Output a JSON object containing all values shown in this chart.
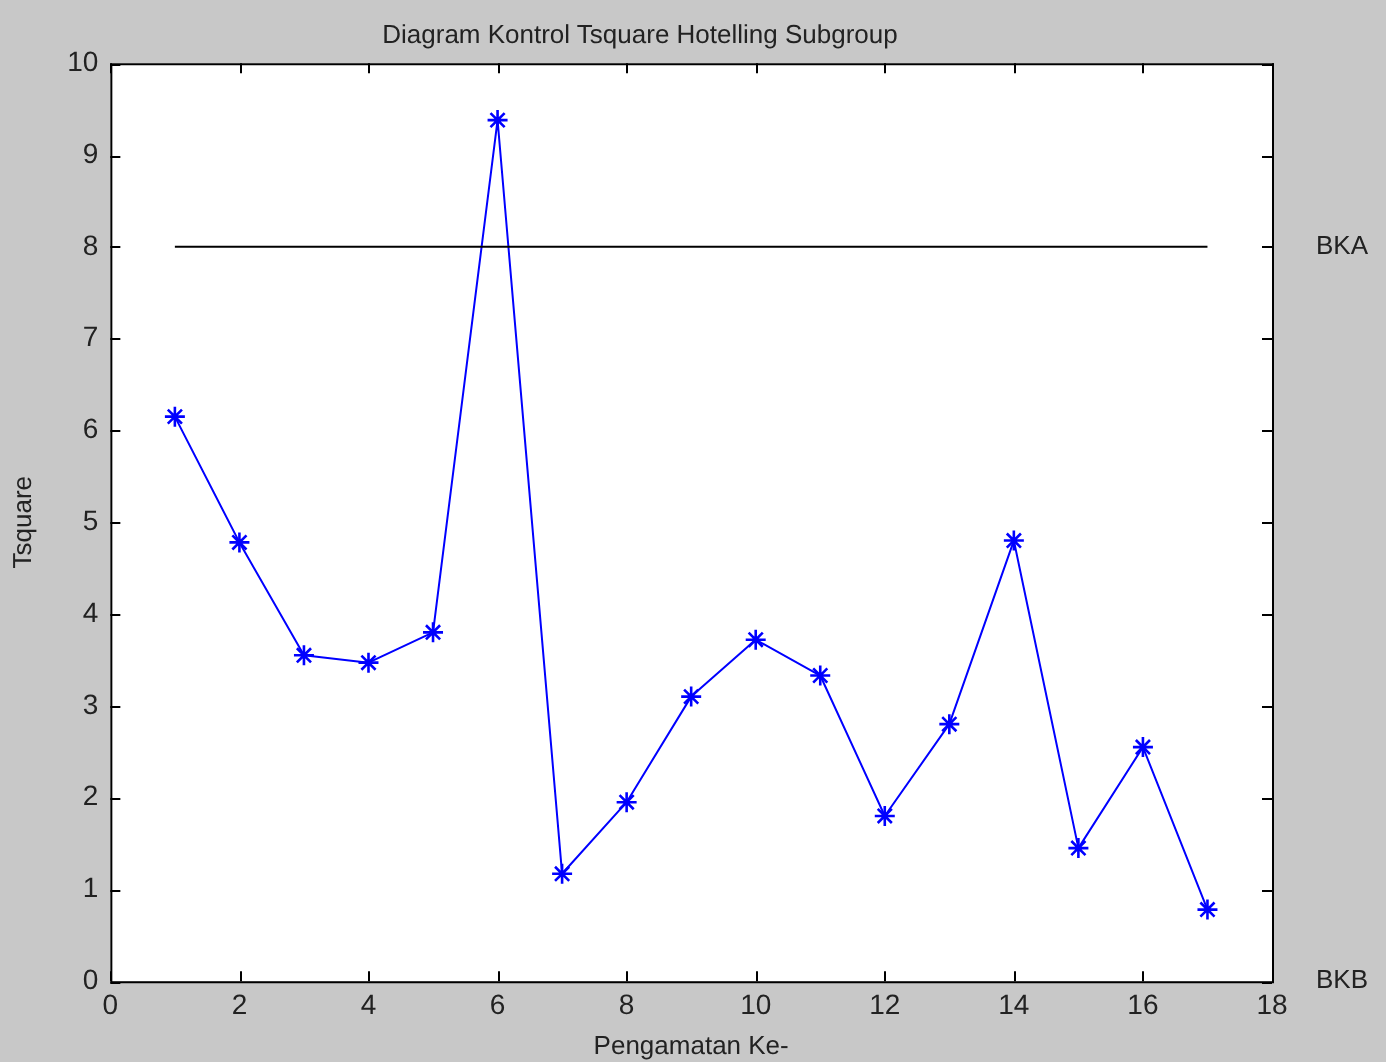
{
  "chart_data": {
    "type": "line",
    "title": "Diagram Kontrol Tsquare Hotelling Subgroup",
    "xlabel": "Pengamatan Ke-",
    "ylabel": "Tsquare",
    "x": [
      1,
      2,
      3,
      4,
      5,
      6,
      7,
      8,
      9,
      10,
      11,
      12,
      13,
      14,
      15,
      16,
      17
    ],
    "series": [
      {
        "color": "#0000ff",
        "values": [
          6.15,
          4.78,
          3.55,
          3.47,
          3.8,
          9.38,
          1.17,
          1.95,
          3.1,
          3.72,
          3.33,
          1.8,
          2.8,
          4.8,
          1.45,
          2.55,
          0.78
        ]
      }
    ],
    "xlim": [
      0,
      18
    ],
    "xticks": [
      0,
      2,
      4,
      6,
      8,
      10,
      12,
      14,
      16,
      18
    ],
    "ylim": [
      0,
      10
    ],
    "yticks": [
      0,
      1,
      2,
      3,
      4,
      5,
      6,
      7,
      8,
      9,
      10
    ],
    "ref_lines": [
      {
        "axis": "y",
        "value": 8,
        "label": "BKA",
        "color": "#000000"
      }
    ],
    "annotations": [
      "BKB"
    ],
    "marker": "cross",
    "line_style": "solid",
    "grid": false,
    "legend": false
  }
}
